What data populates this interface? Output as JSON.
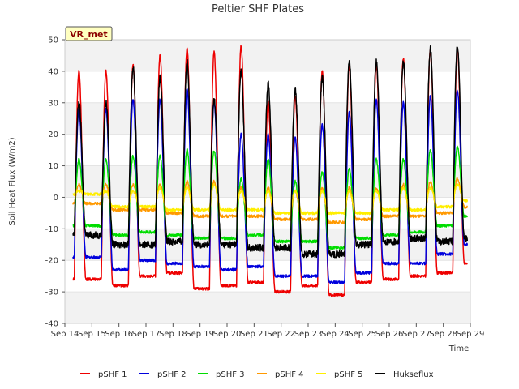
{
  "chart_data": {
    "type": "line",
    "title": "Peltier SHF Plates",
    "xlabel": "Time",
    "ylabel": "Soil Heat Flux (W/m2)",
    "badge": "VR_met",
    "ylim": [
      -40,
      50
    ],
    "yticks": [
      -40,
      -30,
      -20,
      -10,
      0,
      10,
      20,
      30,
      40,
      50
    ],
    "xlim": [
      14,
      29
    ],
    "xticks": [
      14,
      15,
      16,
      17,
      18,
      19,
      20,
      21,
      22,
      23,
      24,
      25,
      26,
      27,
      28,
      29
    ],
    "xtick_labels": [
      "Sep 14",
      "Sep 15",
      "Sep 16",
      "Sep 17",
      "Sep 18",
      "Sep 19",
      "Sep 20",
      "Sep 21",
      "Sep 22",
      "Sep 23",
      "Sep 24",
      "Sep 25",
      "Sep 26",
      "Sep 27",
      "Sep 28",
      "Sep 29"
    ],
    "shaded_bands": [
      [
        40,
        50
      ],
      [
        20,
        30
      ],
      [
        0,
        10
      ],
      [
        -20,
        -10
      ],
      [
        -40,
        -30
      ]
    ],
    "data_x_range": [
      14.3,
      28.9
    ],
    "series": [
      {
        "name": "pSHF 1",
        "color": "#ee0000",
        "peaks": [
          40,
          42,
          45,
          47,
          46,
          48,
          30,
          32,
          40,
          42,
          42,
          44,
          47
        ],
        "troughs": [
          -26,
          -28,
          -25,
          -24,
          -29,
          -28,
          -27,
          -30,
          -28,
          -31,
          -27,
          -26,
          -25,
          -24,
          -21
        ]
      },
      {
        "name": "pSHF 2",
        "color": "#0000dd",
        "peaks": [
          28,
          31,
          31,
          34,
          30,
          20,
          20,
          19,
          23,
          27,
          31,
          30,
          32,
          34
        ],
        "troughs": [
          -19,
          -23,
          -20,
          -21,
          -22,
          -23,
          -22,
          -25,
          -25,
          -27,
          -24,
          -21,
          -21,
          -18,
          -15
        ]
      },
      {
        "name": "pSHF 3",
        "color": "#00dd00",
        "peaks": [
          12,
          13,
          13,
          15,
          15,
          6,
          12,
          5,
          8,
          9,
          12,
          12,
          15,
          16
        ],
        "troughs": [
          -9,
          -12,
          -11,
          -12,
          -13,
          -13,
          -12,
          -14,
          -14,
          -16,
          -13,
          -12,
          -11,
          -9,
          -6
        ]
      },
      {
        "name": "pSHF 4",
        "color": "#ff9900",
        "peaks": [
          4,
          4,
          4,
          5,
          5,
          3,
          3,
          2,
          3,
          3,
          3,
          4,
          5,
          6
        ],
        "troughs": [
          -2,
          -4,
          -4,
          -5,
          -6,
          -6,
          -6,
          -7,
          -7,
          -8,
          -7,
          -6,
          -6,
          -5,
          -3
        ]
      },
      {
        "name": "pSHF 5",
        "color": "#ffee00",
        "peaks": [
          2,
          2,
          3,
          3,
          4,
          2,
          2,
          2,
          2,
          2,
          2,
          3,
          3,
          4
        ],
        "troughs": [
          1,
          -3,
          -3,
          -4,
          -4,
          -4,
          -4,
          -5,
          -5,
          -5,
          -5,
          -4,
          -4,
          -3,
          -1
        ]
      },
      {
        "name": "Hukseflux",
        "color": "#000000",
        "peaks": [
          30,
          41,
          38,
          43,
          31,
          40,
          36,
          34,
          38,
          43,
          43,
          43,
          47,
          48
        ],
        "troughs": [
          -12,
          -15,
          -15,
          -14,
          -15,
          -15,
          -16,
          -16,
          -18,
          -18,
          -15,
          -14,
          -13,
          -14,
          -13
        ]
      }
    ]
  }
}
